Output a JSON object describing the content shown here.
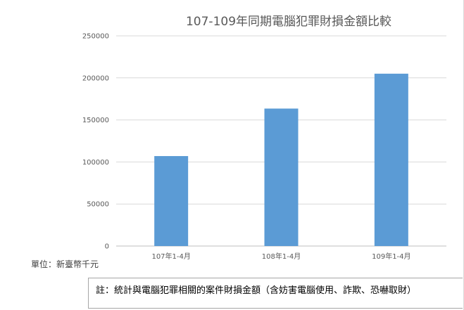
{
  "chart_data": {
    "type": "bar",
    "title": "107-109年同期電腦犯罪財損金額比較",
    "categories": [
      "107年1-4月",
      "108年1-4月",
      "109年1-4月"
    ],
    "values": [
      107000,
      163500,
      205000
    ],
    "ylim": [
      0,
      250000
    ],
    "yticks": [
      "0",
      "50000",
      "100000",
      "150000",
      "200000",
      "250000"
    ],
    "grid": true,
    "bar_color": "#5b9bd5",
    "legend": "none"
  },
  "unit_label": "單位：新臺幣千元",
  "note": "註：統計與電腦犯罪相關的案件財損金額（含妨害電腦使用、詐欺、恐嚇取財）"
}
